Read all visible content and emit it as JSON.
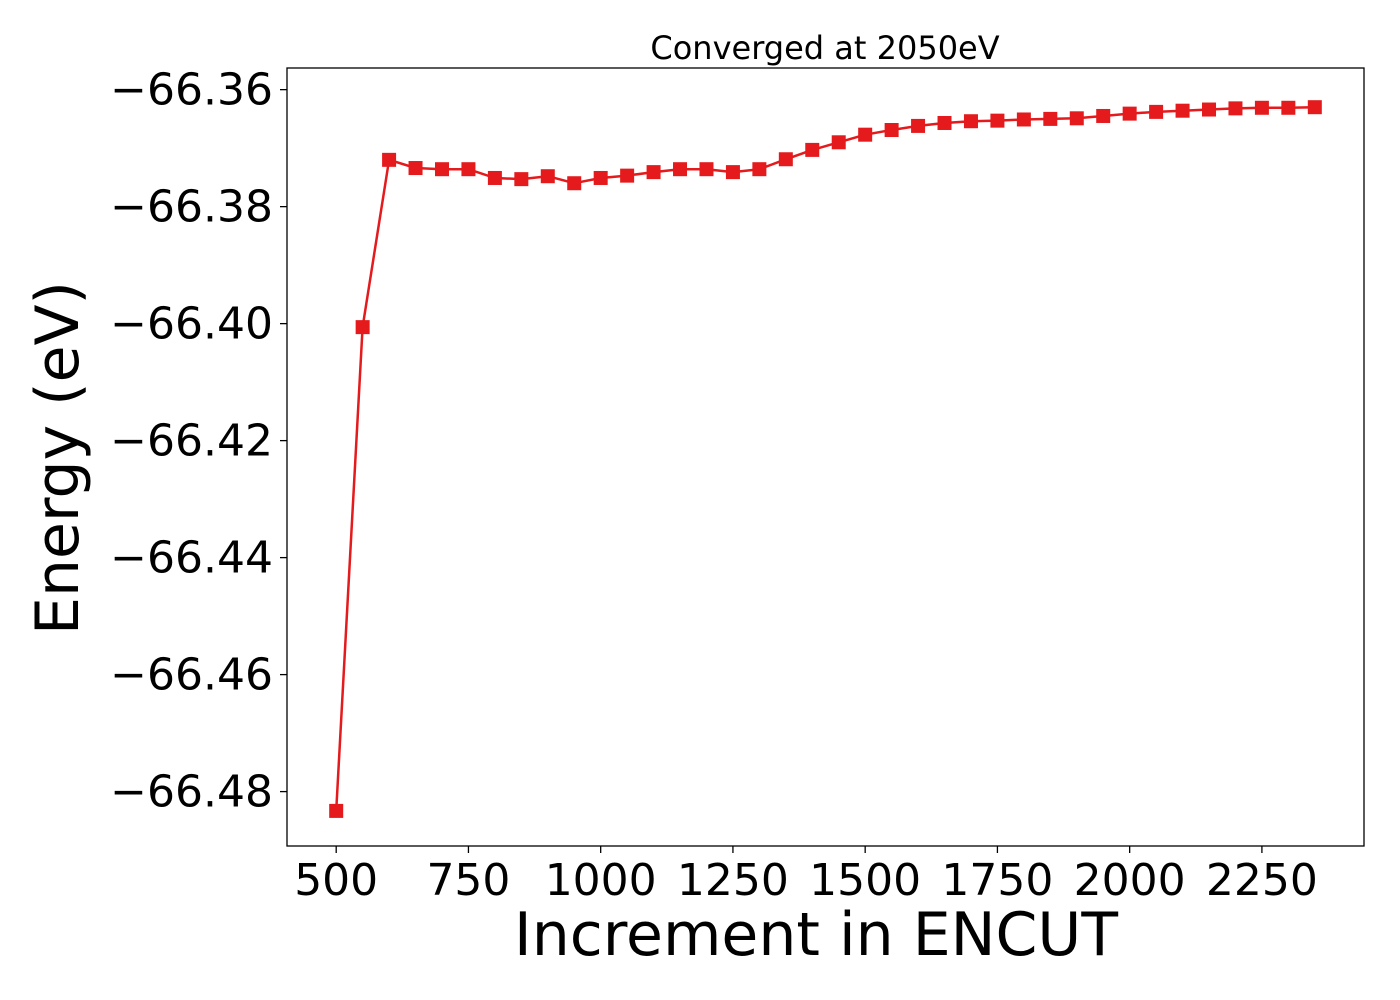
{
  "chart_data": {
    "type": "line",
    "title": "Converged at 2050eV",
    "xlabel": "Increment in ENCUT",
    "ylabel": "Energy (eV)",
    "xlim": [
      407,
      2443
    ],
    "ylim": [
      -66.4893,
      -66.3563
    ],
    "xticks": [
      500,
      750,
      1000,
      1250,
      1500,
      1750,
      2000,
      2250
    ],
    "yticks": [
      -66.36,
      -66.38,
      -66.4,
      -66.42,
      -66.44,
      -66.46,
      -66.48
    ],
    "ytick_labels": [
      "−66.36",
      "−66.38",
      "−66.40",
      "−66.42",
      "−66.44",
      "−66.46",
      "−66.48"
    ],
    "xtick_labels": [
      "500",
      "750",
      "1000",
      "1250",
      "1500",
      "1750",
      "2000",
      "2250"
    ],
    "grid": false,
    "series": [
      {
        "color": "#e41a1c",
        "marker": "square",
        "x": [
          500,
          550,
          600,
          650,
          700,
          750,
          800,
          850,
          900,
          950,
          1000,
          1050,
          1100,
          1150,
          1200,
          1250,
          1300,
          1350,
          1400,
          1450,
          1500,
          1550,
          1600,
          1650,
          1700,
          1750,
          1800,
          1850,
          1900,
          1950,
          2000,
          2050,
          2100,
          2150,
          2200,
          2250,
          2300,
          2350
        ],
        "y": [
          -66.4833,
          -66.4006,
          -66.372,
          -66.3734,
          -66.3736,
          -66.3736,
          -66.3751,
          -66.3753,
          -66.3748,
          -66.376,
          -66.3751,
          -66.3747,
          -66.3741,
          -66.3736,
          -66.3736,
          -66.3741,
          -66.3736,
          -66.3719,
          -66.3703,
          -66.369,
          -66.3677,
          -66.3669,
          -66.3662,
          -66.3657,
          -66.3654,
          -66.3653,
          -66.3651,
          -66.365,
          -66.3649,
          -66.3645,
          -66.3641,
          -66.3638,
          -66.3636,
          -66.3634,
          -66.3632,
          -66.3631,
          -66.3631,
          -66.363
        ]
      }
    ]
  }
}
